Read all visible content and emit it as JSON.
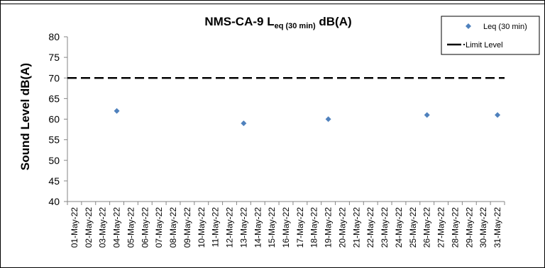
{
  "chart_data": {
    "type": "scatter",
    "title": {
      "main": "NMS-CA-9 L",
      "subscript": "eq (30 min)",
      "suffix": " dB(A)"
    },
    "ylabel": "Sound Level dB(A)",
    "xlabel": "",
    "ylim": [
      40,
      80
    ],
    "yticks": [
      40,
      45,
      50,
      55,
      60,
      65,
      70,
      75,
      80
    ],
    "categories": [
      "01-May-22",
      "02-May-22",
      "03-May-22",
      "04-May-22",
      "05-May-22",
      "06-May-22",
      "07-May-22",
      "08-May-22",
      "09-May-22",
      "10-May-22",
      "11-May-22",
      "12-May-22",
      "13-May-22",
      "14-May-22",
      "15-May-22",
      "16-May-22",
      "17-May-22",
      "18-May-22",
      "19-May-22",
      "20-May-22",
      "21-May-22",
      "22-May-22",
      "23-May-22",
      "24-May-22",
      "25-May-22",
      "26-May-22",
      "27-May-22",
      "28-May-22",
      "29-May-22",
      "30-May-22",
      "31-May-22"
    ],
    "series": [
      {
        "name": "Leq (30 min)",
        "marker": "diamond",
        "color": "#4F81BD",
        "points": [
          {
            "x": "04-May-22",
            "y": 62
          },
          {
            "x": "13-May-22",
            "y": 59
          },
          {
            "x": "19-May-22",
            "y": 60
          },
          {
            "x": "26-May-22",
            "y": 61
          },
          {
            "x": "31-May-22",
            "y": 61
          }
        ]
      },
      {
        "name": "Limit Level",
        "style": "dashed-line",
        "color": "#000000",
        "value": 70
      }
    ],
    "legend_position": "top-right",
    "grid": false
  }
}
